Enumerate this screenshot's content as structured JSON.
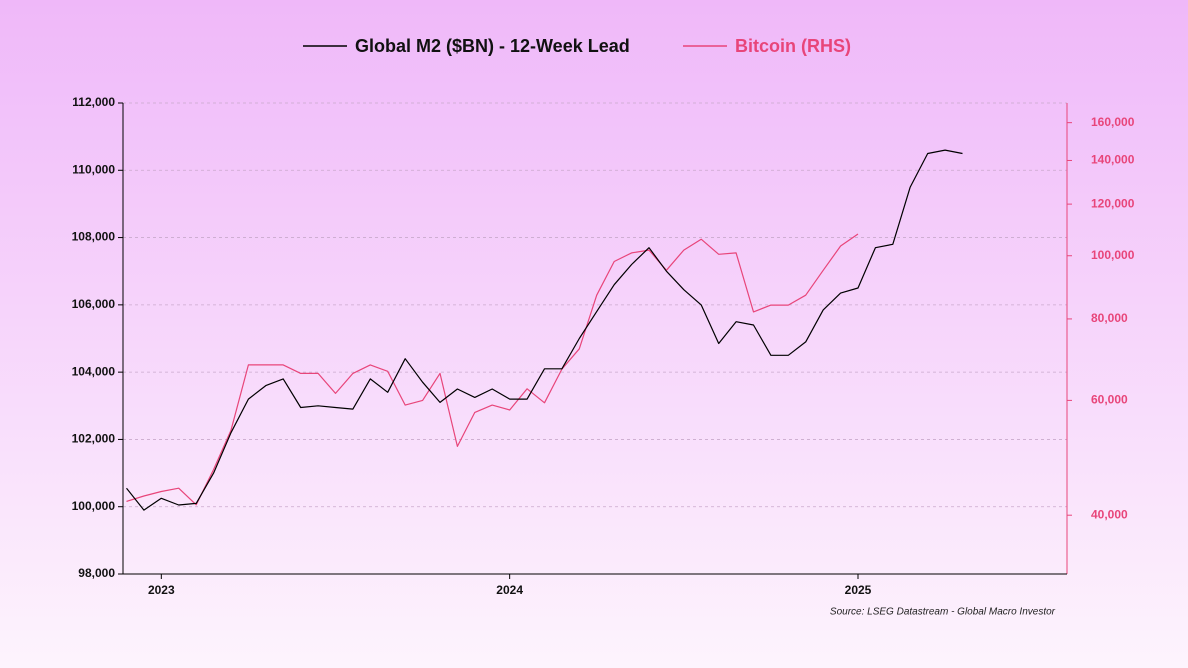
{
  "chart_data": {
    "type": "line",
    "source": "Source: LSEG Datastream - Global Macro Investor",
    "x": [
      2022.9,
      2022.95,
      2023,
      2023.05,
      2023.1,
      2023.15,
      2023.2,
      2023.25,
      2023.3,
      2023.35,
      2023.4,
      2023.45,
      2023.5,
      2023.55,
      2023.6,
      2023.65,
      2023.7,
      2023.75,
      2023.8,
      2023.85,
      2023.9,
      2023.95,
      2024,
      2024.05,
      2024.1,
      2024.15,
      2024.2,
      2024.25,
      2024.3,
      2024.35,
      2024.4,
      2024.45,
      2024.5,
      2024.55,
      2024.6,
      2024.65,
      2024.7,
      2024.75,
      2024.8,
      2024.85,
      2024.9,
      2024.95,
      2025,
      2025.05,
      2025.1,
      2025.15,
      2025.2,
      2025.25,
      2025.3
    ],
    "series": [
      {
        "name": "Global M2 ($BN) - 12-Week Lead",
        "color": "#000000",
        "axis": "y",
        "values": [
          100550,
          99900,
          100250,
          100050,
          100100,
          101000,
          102200,
          103200,
          103600,
          103800,
          102950,
          103000,
          102950,
          102900,
          103800,
          103400,
          104400,
          103700,
          103100,
          103500,
          103250,
          103500,
          103200,
          103200,
          104100,
          104100,
          105000,
          105800,
          106600,
          107200,
          107700,
          107000,
          106450,
          106000,
          104850,
          105500,
          105400,
          104500,
          104500,
          104900,
          105850,
          106350,
          106500,
          107700,
          107800,
          109500,
          110500,
          110600,
          110500
        ]
      },
      {
        "name": "Bitcoin (RHS)",
        "color": "#e8457a",
        "axis": "y2",
        "values": [
          42000,
          42800,
          43500,
          44000,
          41500,
          47000,
          54000,
          68000,
          68000,
          68000,
          66000,
          66000,
          61500,
          66000,
          68000,
          66500,
          59000,
          60000,
          66000,
          51000,
          57500,
          59000,
          58000,
          62500,
          59500,
          67000,
          72000,
          87000,
          98000,
          101000,
          102000,
          95000,
          102000,
          106000,
          100500,
          101000,
          82000,
          84000,
          84000,
          87000,
          95000,
          103500,
          108000,
          null,
          null,
          null,
          null,
          null,
          null
        ]
      }
    ],
    "xlim": [
      2022.89,
      2025.6
    ],
    "xticks": [
      2023,
      2024,
      2025
    ],
    "ylim": [
      98000,
      112000
    ],
    "yticks": [
      {
        "value": 98000,
        "label": "98,000"
      },
      {
        "value": 100000,
        "label": "100,000"
      },
      {
        "value": 102000,
        "label": "102,000"
      },
      {
        "value": 104000,
        "label": "104,000"
      },
      {
        "value": 106000,
        "label": "106,000"
      },
      {
        "value": 108000,
        "label": "108,000"
      },
      {
        "value": 110000,
        "label": "110,000"
      },
      {
        "value": 112000,
        "label": "112,000"
      }
    ],
    "y2lim": [
      32500,
      171500
    ],
    "y2log": true,
    "y2ticks": [
      {
        "value": 40000,
        "label": "40,000"
      },
      {
        "value": 60000,
        "label": "60,000"
      },
      {
        "value": 80000,
        "label": "80,000"
      },
      {
        "value": 100000,
        "label": "100,000"
      },
      {
        "value": 120000,
        "label": "120,000"
      },
      {
        "value": 140000,
        "label": "140,000"
      },
      {
        "value": 160000,
        "label": "160,000"
      }
    ],
    "grid": true,
    "legend": "top"
  }
}
